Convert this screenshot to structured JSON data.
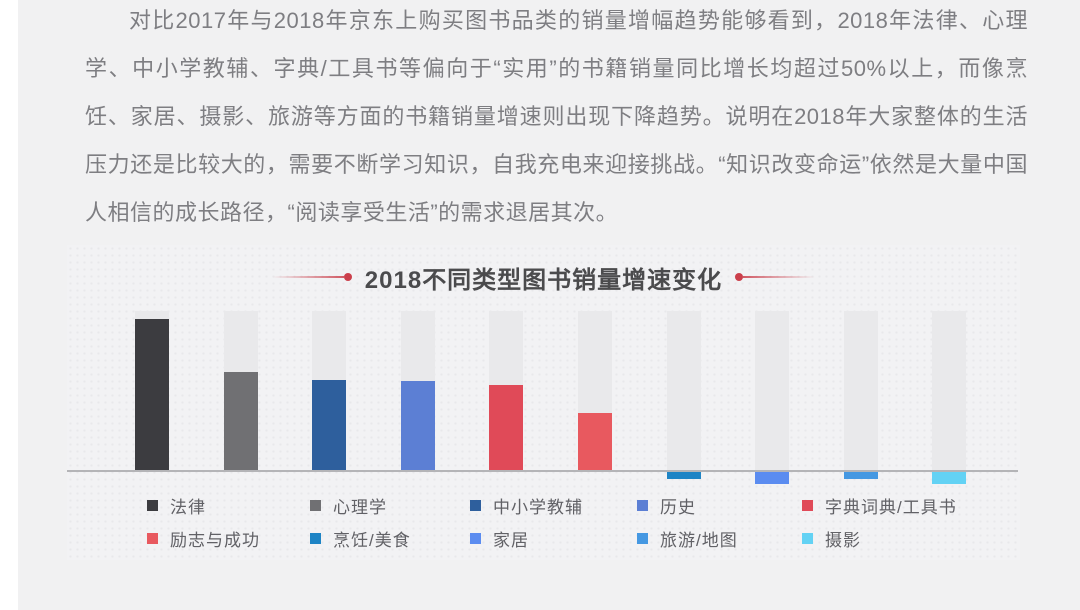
{
  "page": {
    "accent_red": "#cb3f4b",
    "background": "#f1f1f2"
  },
  "paragraph": {
    "text": "对比2017年与2018年京东上购买图书品类的销量增幅趋势能够看到，2018年法律、心理学、中小学教辅、字典/工具书等偏向于“实用”的书籍销量同比增长均超过50%以上，而像烹饪、家居、摄影、旅游等方面的书籍销量增速则出现下降趋势。说明在2018年大家整体的生活压力还是比较大的，需要不断学习知识，自我充电来迎接挑战。“知识改变命运”依然是大量中国人相信的成长路径，“阅读享受生活”的需求退居其次。"
  },
  "chart_data": {
    "type": "bar",
    "title": "2018不同类型图书销量增速变化",
    "categories": [
      "法律",
      "心理学",
      "中小学教辅",
      "历史",
      "字典词典/工具书",
      "励志与成功",
      "烹饪/美食",
      "家居",
      "旅游/地图",
      "摄影"
    ],
    "values": [
      92,
      60,
      55,
      54,
      52,
      35,
      -4,
      -7.5,
      -4,
      -7.5
    ],
    "unit": "%",
    "colors": [
      "#3c3c40",
      "#707073",
      "#2e5f9d",
      "#5c7fd4",
      "#e04a58",
      "#e8595f",
      "#1e84c5",
      "#5b8cf0",
      "#4598e2",
      "#63d2f4"
    ],
    "ylim": [
      -10,
      97
    ],
    "grid": false,
    "legend_position": "bottom",
    "axis_labels_shown": false
  }
}
